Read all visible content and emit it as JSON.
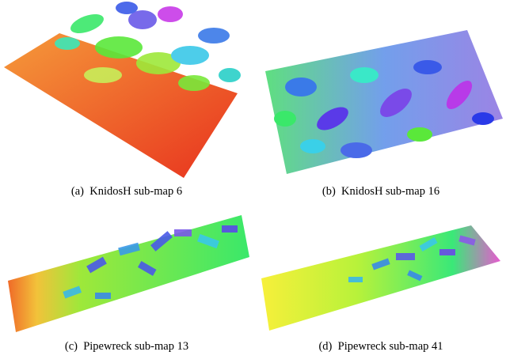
{
  "figure": {
    "panels": [
      {
        "caption": "(a)  KnidosH sub-map 6"
      },
      {
        "caption": "(b)  KnidosH sub-map 16"
      },
      {
        "caption": "(c)  Pipewreck sub-map 13"
      },
      {
        "caption": "(d)  Pipewreck sub-map 41"
      }
    ]
  }
}
